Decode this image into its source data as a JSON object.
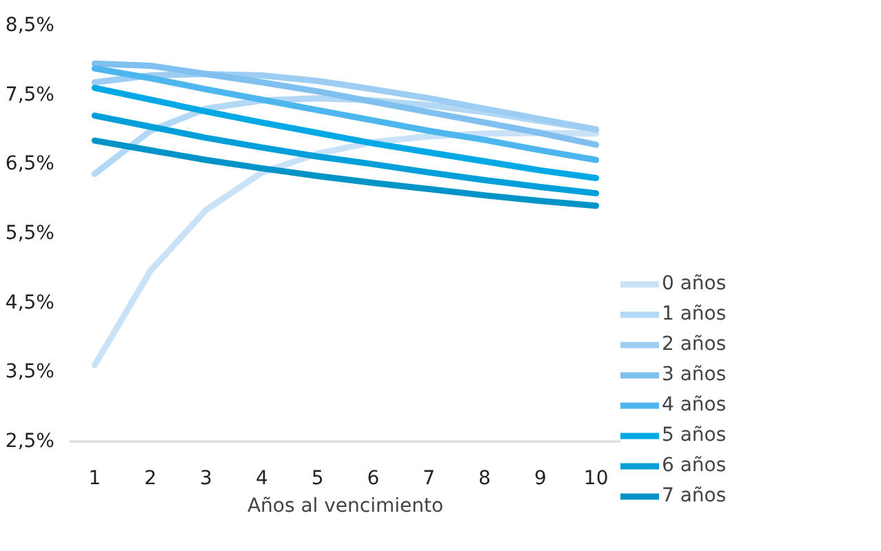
{
  "chart_data": {
    "type": "line",
    "xlabel": "Años al vencimiento",
    "x": [
      1,
      2,
      3,
      4,
      5,
      6,
      7,
      8,
      9,
      10
    ],
    "series": [
      {
        "name": "0 años",
        "color": "#c9e2f8",
        "values": [
          3.6,
          4.96,
          5.84,
          6.38,
          6.65,
          6.82,
          6.9,
          6.94,
          6.95,
          6.94
        ]
      },
      {
        "name": "1 años",
        "color": "#b3d8f5",
        "values": [
          6.36,
          6.98,
          7.3,
          7.42,
          7.45,
          7.42,
          7.35,
          7.25,
          7.12,
          7.0
        ]
      },
      {
        "name": "2 años",
        "color": "#9dcdf3",
        "values": [
          7.68,
          7.78,
          7.8,
          7.78,
          7.7,
          7.58,
          7.45,
          7.3,
          7.15,
          7.0
        ]
      },
      {
        "name": "3 años",
        "color": "#7fc0f0",
        "values": [
          7.95,
          7.92,
          7.8,
          7.68,
          7.55,
          7.4,
          7.25,
          7.1,
          6.95,
          6.78
        ]
      },
      {
        "name": "4 años",
        "color": "#4db6ee",
        "values": [
          7.88,
          7.74,
          7.58,
          7.43,
          7.28,
          7.13,
          6.98,
          6.85,
          6.7,
          6.56
        ]
      },
      {
        "name": "5 años",
        "color": "#00a9e6",
        "values": [
          7.6,
          7.43,
          7.26,
          7.1,
          6.95,
          6.8,
          6.67,
          6.54,
          6.41,
          6.3
        ]
      },
      {
        "name": "6 años",
        "color": "#009fda",
        "values": [
          7.2,
          7.04,
          6.88,
          6.74,
          6.61,
          6.5,
          6.38,
          6.27,
          6.17,
          6.08
        ]
      },
      {
        "name": "7 años",
        "color": "#0093c8",
        "values": [
          6.84,
          6.7,
          6.56,
          6.44,
          6.33,
          6.23,
          6.14,
          6.05,
          5.97,
          5.9
        ]
      }
    ],
    "xlim": [
      0.55,
      10.45
    ],
    "xticks": [
      1,
      2,
      3,
      4,
      5,
      6,
      7,
      8,
      9,
      10
    ],
    "ylim": [
      2.5,
      8.5
    ],
    "yticks": [
      {
        "value": 2.5,
        "label": "2,5%"
      },
      {
        "value": 3.5,
        "label": "3,5%"
      },
      {
        "value": 4.5,
        "label": "4,5%"
      },
      {
        "value": 5.5,
        "label": "5,5%"
      },
      {
        "value": 6.5,
        "label": "6,5%"
      },
      {
        "value": 7.5,
        "label": "7,5%"
      },
      {
        "value": 8.5,
        "label": "8,5%"
      }
    ],
    "grid": false,
    "legend": "right",
    "marker": "none",
    "line_style": "solid"
  }
}
